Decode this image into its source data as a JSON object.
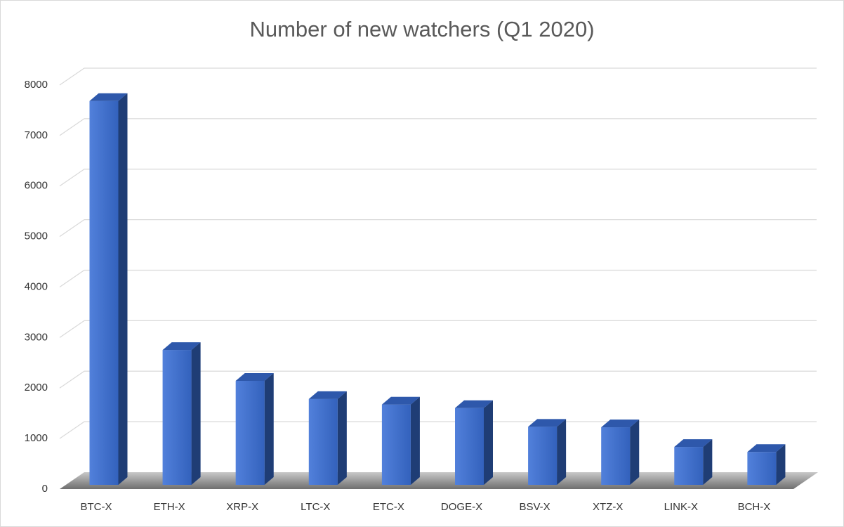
{
  "chart_data": {
    "type": "bar3d",
    "title": "Number of new watchers (Q1 2020)",
    "categories": [
      "BTC-X",
      "ETH-X",
      "XRP-X",
      "LTC-X",
      "ETC-X",
      "DOGE-X",
      "BSV-X",
      "XTZ-X",
      "LINK-X",
      "BCH-X"
    ],
    "values": [
      7600,
      2670,
      2060,
      1700,
      1590,
      1520,
      1150,
      1140,
      750,
      650
    ],
    "color": "#3a6fd6",
    "ylim": [
      0,
      8000
    ],
    "yticks": [
      0,
      1000,
      2000,
      3000,
      4000,
      5000,
      6000,
      7000,
      8000
    ],
    "grid": true
  }
}
